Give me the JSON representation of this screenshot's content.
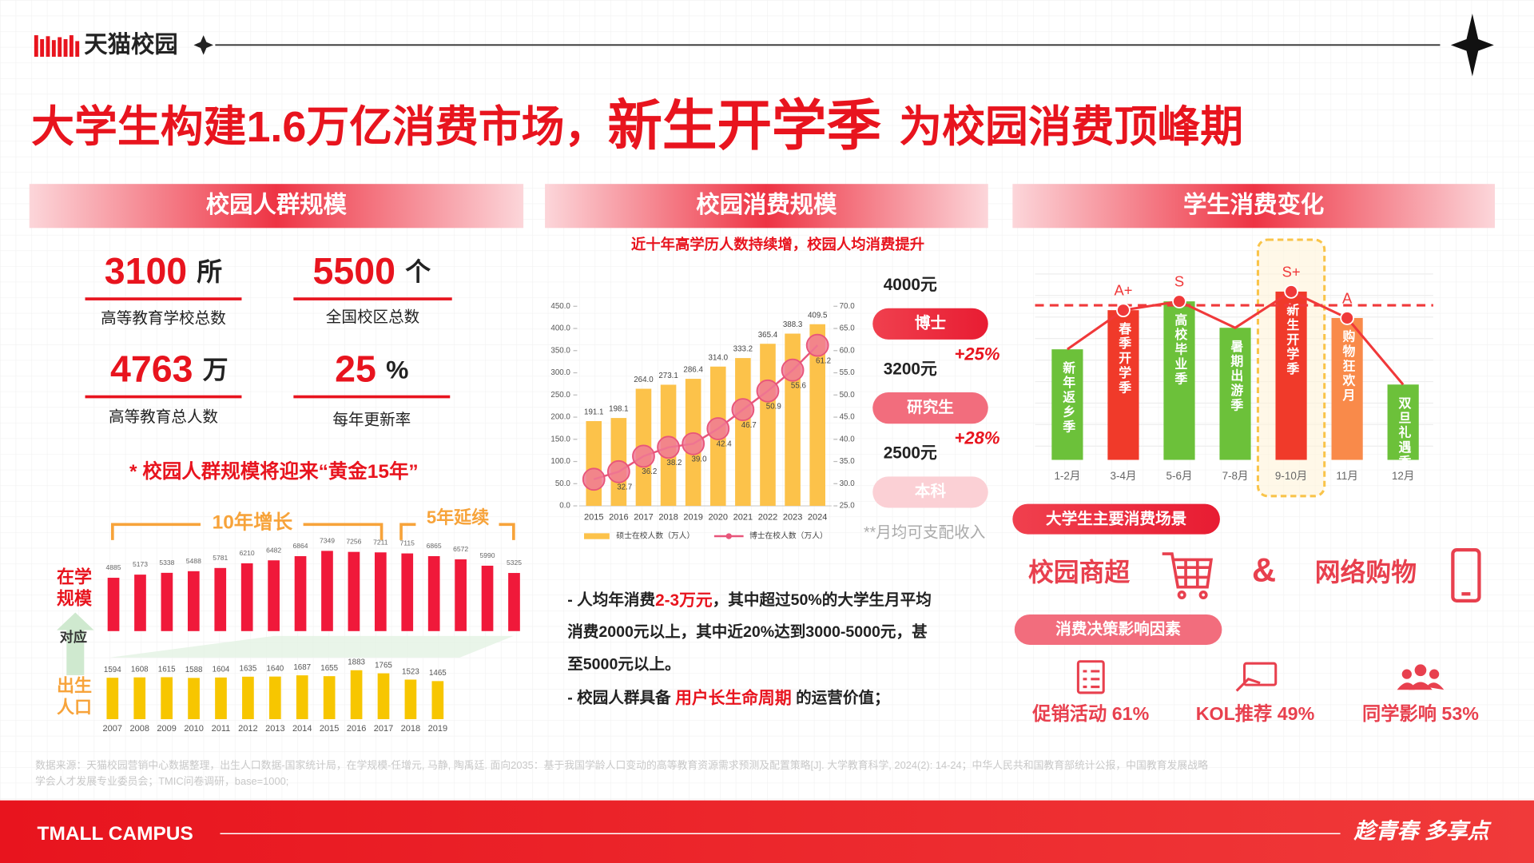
{
  "header": {
    "logo": "天猫校园"
  },
  "title": {
    "part1": "大学生构建1.6万亿消费市场，",
    "part2": "新生开学季",
    "part3": "为校园消费顶峰期"
  },
  "sections": [
    "校园人群规模",
    "校园消费规模",
    "学生消费变化"
  ],
  "stats": [
    {
      "number": "3100",
      "unit": "所",
      "label": "高等教育学校总数"
    },
    {
      "number": "5500",
      "unit": "个",
      "label": "全国校区总数"
    },
    {
      "number": "4763",
      "unit": "万",
      "label": "高等教育总人数"
    },
    {
      "number": "25",
      "unit": "%",
      "label": "每年更新率"
    }
  ],
  "golden_note": "* 校园人群规模将迎来“黄金15年”",
  "enrollment_chart": {
    "type": "bar",
    "label": [
      "在学",
      "规模"
    ],
    "annotations": [
      "10年增长",
      "5年延续"
    ],
    "color": "#f0193a",
    "values": [
      4885,
      5173,
      5338,
      5488,
      5781,
      6210,
      6482,
      6864,
      7349,
      7256,
      7211,
      7115,
      6865,
      6572,
      5990,
      5325
    ],
    "ylim": [
      0,
      7349
    ]
  },
  "link_label": "对应",
  "birth_chart": {
    "type": "bar",
    "label": [
      "出生",
      "人口"
    ],
    "color": "#f7c600",
    "categories": [
      "2007",
      "2008",
      "2009",
      "2010",
      "2011",
      "2012",
      "2013",
      "2014",
      "2015",
      "2016",
      "2017",
      "2018",
      "2019"
    ],
    "values": [
      1594,
      1608,
      1615,
      1588,
      1604,
      1635,
      1640,
      1687,
      1655,
      1883,
      1765,
      1523,
      1465
    ],
    "ylim": [
      0,
      1883
    ]
  },
  "degree_chart": {
    "type": "bar_line",
    "subtitle": "近十年高学历人数持续增，校园人均消费提升",
    "categories": [
      "2015",
      "2016",
      "2017",
      "2018",
      "2019",
      "2020",
      "2021",
      "2022",
      "2023",
      "2024"
    ],
    "series": [
      {
        "name": "硕士在校人数（万人）",
        "color": "#fcc24a",
        "values": [
          191.1,
          198.1,
          264.0,
          273.1,
          286.4,
          314.0,
          333.2,
          365.4,
          388.3,
          409.5
        ],
        "value_labels": [
          "191.1",
          "198.1",
          "264.0",
          "273.1",
          "286.4",
          "314.0",
          "333.2",
          "365.4",
          "388.3",
          "409.5"
        ]
      },
      {
        "name": "博士在校人数（万人）",
        "color": "#e8557a",
        "axis": "y2",
        "values": [
          31.0,
          32.7,
          36.2,
          38.2,
          39.0,
          42.4,
          46.7,
          50.9,
          55.6,
          61.2
        ],
        "value_labels": [
          null,
          "32.7",
          "36.2",
          "38.2",
          "39.0",
          "42.4",
          "46.7",
          "50.9",
          "55.6",
          "61.2"
        ]
      }
    ],
    "ylim": [
      0,
      450
    ],
    "yticks": [
      {
        "value": 0,
        "label": "0.0"
      },
      {
        "value": 50,
        "label": "50.0"
      },
      {
        "value": 100,
        "label": "100.0"
      },
      {
        "value": 150,
        "label": "150.0"
      },
      {
        "value": 200,
        "label": "200.0"
      },
      {
        "value": 250,
        "label": "250.0"
      },
      {
        "value": 300,
        "label": "300.0"
      },
      {
        "value": 350,
        "label": "350.0"
      },
      {
        "value": 400,
        "label": "400.0"
      },
      {
        "value": 450,
        "label": "450.0"
      }
    ],
    "y2lim": [
      25,
      70
    ],
    "y2ticks": [
      {
        "value": 25,
        "label": "25.0"
      },
      {
        "value": 30,
        "label": "30.0"
      },
      {
        "value": 35,
        "label": "35.0"
      },
      {
        "value": 40,
        "label": "40.0"
      },
      {
        "value": 45,
        "label": "45.0"
      },
      {
        "value": 50,
        "label": "50.0"
      },
      {
        "value": 55,
        "label": "55.0"
      },
      {
        "value": 60,
        "label": "60.0"
      },
      {
        "value": 65,
        "label": "65.0"
      },
      {
        "value": 70,
        "label": "70.0"
      }
    ]
  },
  "income": {
    "levels": [
      {
        "amount": "4000元",
        "degree": "博士",
        "growth": "+25%"
      },
      {
        "amount": "3200元",
        "degree": "研究生",
        "growth": "+28%"
      },
      {
        "amount": "2500元",
        "degree": "本科"
      }
    ],
    "note": "**月均可支配收入"
  },
  "text_block": {
    "lines": [
      [
        {
          "text": "- 人均年消费",
          "highlight": false
        },
        {
          "text": "2-3万元",
          "highlight": true
        },
        {
          "text": "，其中超过50%的大学生月平均",
          "highlight": false
        }
      ],
      [
        {
          "text": "消费2000元以上，其中近20%达到3000-5000元，甚",
          "highlight": false
        }
      ],
      [
        {
          "text": "至5000元以上。",
          "highlight": false
        }
      ],
      [
        {
          "text": "- 校园人群具备 ",
          "highlight": false
        },
        {
          "text": "用户长生命周期",
          "highlight": true
        },
        {
          "text": " 的运营价值；",
          "highlight": false
        }
      ]
    ]
  },
  "season_chart": {
    "type": "bar_line",
    "categories": [
      "1-2月",
      "3-4月",
      "5-6月",
      "7-8月",
      "9-10月",
      "11月",
      "12月"
    ],
    "names": [
      "新年返乡季",
      "春季开学季",
      "高校毕业季",
      "暑期出游季",
      "新生开学季",
      "购物狂欢月",
      "双旦礼遇季"
    ],
    "ratings": [
      null,
      "A+",
      "S",
      null,
      "S+",
      "A",
      null
    ],
    "values": [
      113,
      153,
      162,
      135,
      172,
      145,
      77
    ],
    "colors": [
      "#6cc13a",
      "#f03a2a",
      "#6cc13a",
      "#6cc13a",
      "#f03a2a",
      "#f98a4a",
      "#6cc13a"
    ],
    "line_color": "#f0393a",
    "ylim": [
      0,
      200
    ],
    "reference_line": 158,
    "highlight": 4
  },
  "scenes": {
    "title": "大学生主要消费场景",
    "items": [
      "校园商超",
      "&",
      "网络购物"
    ]
  },
  "factors": {
    "title": "消费决策影响因素",
    "items": [
      "促销活动 61%",
      "KOL推荐 49%",
      "同学影响 53%"
    ]
  },
  "source": [
    "数据来源：天猫校园营销中心数据整理，出生人口数据-国家统计局，在学规模-任增元, 马静, 陶禹廷. 面向2035：基于我国学龄人口变动的高等教育资源需求预测及配置策略[J]. 大学教育科学, 2024(2): 14-24；中华人民共和国教育部统计公报，中国教育发展战略",
    "学会人才发展专业委员会；TMIC问卷调研，base=1000;"
  ],
  "footer": {
    "brand": "TMALL CAMPUS",
    "slogan": "趁青春 多享点"
  }
}
